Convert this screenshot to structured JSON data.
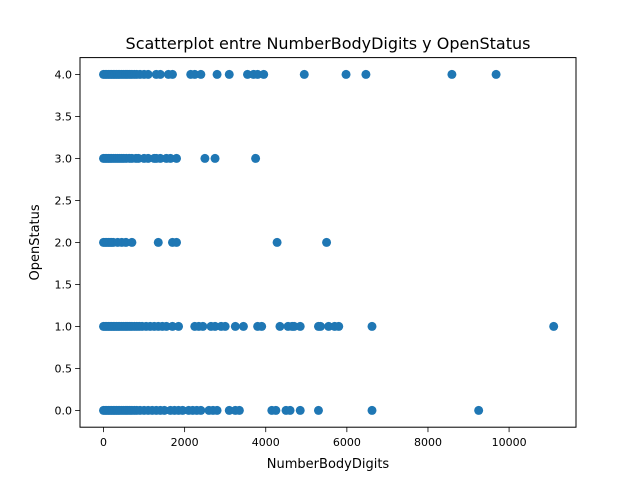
{
  "chart_data": {
    "type": "scatter",
    "title": "Scatterplot entre NumberBodyDigits y OpenStatus",
    "xlabel": "NumberBodyDigits",
    "ylabel": "OpenStatus",
    "xlim": [
      -580,
      11650
    ],
    "ylim": [
      -0.2,
      4.2
    ],
    "x_ticks": [
      0,
      2000,
      4000,
      6000,
      8000,
      10000
    ],
    "x_tick_labels": [
      "0",
      "2000",
      "4000",
      "6000",
      "8000",
      "10000"
    ],
    "y_ticks": [
      0.0,
      0.5,
      1.0,
      1.5,
      2.0,
      2.5,
      3.0,
      3.5,
      4.0
    ],
    "y_tick_labels": [
      "0.0",
      "0.5",
      "1.0",
      "1.5",
      "2.0",
      "2.5",
      "3.0",
      "3.5",
      "4.0"
    ],
    "grid": false,
    "marker_color": "#1f77b4",
    "series": [
      {
        "values": [
          [
            0,
            4
          ],
          [
            40,
            4
          ],
          [
            80,
            4
          ],
          [
            120,
            4
          ],
          [
            160,
            4
          ],
          [
            200,
            4
          ],
          [
            240,
            4
          ],
          [
            280,
            4
          ],
          [
            320,
            4
          ],
          [
            360,
            4
          ],
          [
            400,
            4
          ],
          [
            450,
            4
          ],
          [
            500,
            4
          ],
          [
            550,
            4
          ],
          [
            600,
            4
          ],
          [
            650,
            4
          ],
          [
            700,
            4
          ],
          [
            760,
            4
          ],
          [
            820,
            4
          ],
          [
            900,
            4
          ],
          [
            1000,
            4
          ],
          [
            1100,
            4
          ],
          [
            1300,
            4
          ],
          [
            1400,
            4
          ],
          [
            1600,
            4
          ],
          [
            1700,
            4
          ],
          [
            2150,
            4
          ],
          [
            2250,
            4
          ],
          [
            2400,
            4
          ],
          [
            2800,
            4
          ],
          [
            3100,
            4
          ],
          [
            3550,
            4
          ],
          [
            3700,
            4
          ],
          [
            3800,
            4
          ],
          [
            3950,
            4
          ],
          [
            4950,
            4
          ],
          [
            5980,
            4
          ],
          [
            6470,
            4
          ],
          [
            8590,
            4
          ],
          [
            9680,
            4
          ],
          [
            0,
            3
          ],
          [
            40,
            3
          ],
          [
            80,
            3
          ],
          [
            120,
            3
          ],
          [
            160,
            3
          ],
          [
            200,
            3
          ],
          [
            250,
            3
          ],
          [
            300,
            3
          ],
          [
            350,
            3
          ],
          [
            400,
            3
          ],
          [
            450,
            3
          ],
          [
            500,
            3
          ],
          [
            560,
            3
          ],
          [
            640,
            3
          ],
          [
            700,
            3
          ],
          [
            800,
            3
          ],
          [
            860,
            3
          ],
          [
            1000,
            3
          ],
          [
            1100,
            3
          ],
          [
            1250,
            3
          ],
          [
            1300,
            3
          ],
          [
            1400,
            3
          ],
          [
            1550,
            3
          ],
          [
            1650,
            3
          ],
          [
            1800,
            3
          ],
          [
            2500,
            3
          ],
          [
            2750,
            3
          ],
          [
            3750,
            3
          ],
          [
            0,
            2
          ],
          [
            40,
            2
          ],
          [
            80,
            2
          ],
          [
            120,
            2
          ],
          [
            160,
            2
          ],
          [
            200,
            2
          ],
          [
            240,
            2
          ],
          [
            350,
            2
          ],
          [
            450,
            2
          ],
          [
            550,
            2
          ],
          [
            700,
            2
          ],
          [
            1350,
            2
          ],
          [
            1700,
            2
          ],
          [
            1800,
            2
          ],
          [
            4280,
            2
          ],
          [
            5500,
            2
          ],
          [
            0,
            1
          ],
          [
            40,
            1
          ],
          [
            80,
            1
          ],
          [
            120,
            1
          ],
          [
            160,
            1
          ],
          [
            200,
            1
          ],
          [
            240,
            1
          ],
          [
            280,
            1
          ],
          [
            320,
            1
          ],
          [
            360,
            1
          ],
          [
            400,
            1
          ],
          [
            450,
            1
          ],
          [
            500,
            1
          ],
          [
            550,
            1
          ],
          [
            600,
            1
          ],
          [
            650,
            1
          ],
          [
            700,
            1
          ],
          [
            760,
            1
          ],
          [
            820,
            1
          ],
          [
            880,
            1
          ],
          [
            950,
            1
          ],
          [
            1050,
            1
          ],
          [
            1150,
            1
          ],
          [
            1250,
            1
          ],
          [
            1350,
            1
          ],
          [
            1450,
            1
          ],
          [
            1550,
            1
          ],
          [
            1700,
            1
          ],
          [
            1850,
            1
          ],
          [
            2250,
            1
          ],
          [
            2350,
            1
          ],
          [
            2450,
            1
          ],
          [
            2650,
            1
          ],
          [
            2750,
            1
          ],
          [
            2900,
            1
          ],
          [
            3000,
            1
          ],
          [
            3250,
            1
          ],
          [
            3450,
            1
          ],
          [
            3800,
            1
          ],
          [
            3900,
            1
          ],
          [
            4350,
            1
          ],
          [
            4550,
            1
          ],
          [
            4650,
            1
          ],
          [
            4700,
            1
          ],
          [
            4850,
            1
          ],
          [
            5300,
            1
          ],
          [
            5350,
            1
          ],
          [
            5550,
            1
          ],
          [
            5700,
            1
          ],
          [
            5800,
            1
          ],
          [
            6620,
            1
          ],
          [
            11100,
            1
          ],
          [
            0,
            0
          ],
          [
            40,
            0
          ],
          [
            80,
            0
          ],
          [
            120,
            0
          ],
          [
            160,
            0
          ],
          [
            200,
            0
          ],
          [
            240,
            0
          ],
          [
            280,
            0
          ],
          [
            320,
            0
          ],
          [
            360,
            0
          ],
          [
            400,
            0
          ],
          [
            450,
            0
          ],
          [
            500,
            0
          ],
          [
            550,
            0
          ],
          [
            600,
            0
          ],
          [
            650,
            0
          ],
          [
            700,
            0
          ],
          [
            760,
            0
          ],
          [
            820,
            0
          ],
          [
            900,
            0
          ],
          [
            1000,
            0
          ],
          [
            1100,
            0
          ],
          [
            1200,
            0
          ],
          [
            1300,
            0
          ],
          [
            1400,
            0
          ],
          [
            1500,
            0
          ],
          [
            1650,
            0
          ],
          [
            1750,
            0
          ],
          [
            1850,
            0
          ],
          [
            1950,
            0
          ],
          [
            2100,
            0
          ],
          [
            2200,
            0
          ],
          [
            2300,
            0
          ],
          [
            2400,
            0
          ],
          [
            2600,
            0
          ],
          [
            2700,
            0
          ],
          [
            2800,
            0
          ],
          [
            3100,
            0
          ],
          [
            3250,
            0
          ],
          [
            3350,
            0
          ],
          [
            4150,
            0
          ],
          [
            4250,
            0
          ],
          [
            4500,
            0
          ],
          [
            4600,
            0
          ],
          [
            4850,
            0
          ],
          [
            5300,
            0
          ],
          [
            6620,
            0
          ],
          [
            9250,
            0
          ]
        ]
      }
    ]
  }
}
